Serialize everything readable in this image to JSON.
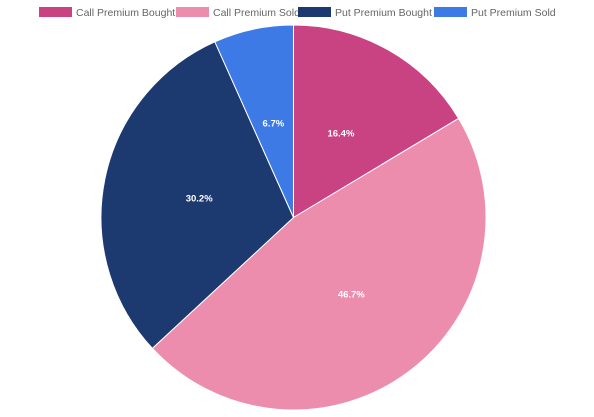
{
  "chart_data": {
    "type": "pie",
    "legend_position": "top",
    "slices": [
      {
        "label": "Call Premium Bought",
        "value": 16.4,
        "display": "16.4%",
        "color": "#c94382"
      },
      {
        "label": "Call Premium Sold",
        "value": 46.7,
        "display": "46.7%",
        "color": "#ec8dad"
      },
      {
        "label": "Put Premium Bought",
        "value": 30.2,
        "display": "30.2%",
        "color": "#1d3a70"
      },
      {
        "label": "Put Premium Sold",
        "value": 6.7,
        "display": "6.7%",
        "color": "#3d7ae5"
      }
    ]
  }
}
